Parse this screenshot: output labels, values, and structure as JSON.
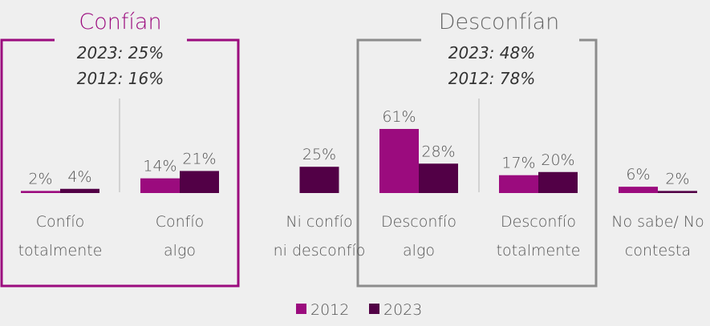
{
  "colors": {
    "background": "#efefef",
    "s2012": "#9b0b7e",
    "s2023": "#520046",
    "label_text": "#555555",
    "confian_accent": "#9b0b7e",
    "desconfian_frame": "#8c8c8c",
    "divider": "#c8c8c8"
  },
  "groups": {
    "confian": {
      "title": "Confían",
      "line2023": "2023: 25%",
      "line2012": "2012: 16%"
    },
    "desconfian": {
      "title": "Desconfían",
      "line2023": "2023: 48%",
      "line2012": "2012: 78%"
    }
  },
  "chart_data": {
    "type": "bar",
    "categories": [
      [
        "Confío",
        "totalmente"
      ],
      [
        "Confío",
        "algo"
      ],
      [
        "Ni confío",
        "ni desconfío"
      ],
      [
        "Desconfío",
        "algo"
      ],
      [
        "Desconfío",
        "totalmente"
      ],
      [
        "No sabe/ No",
        "contesta"
      ]
    ],
    "series": [
      {
        "name": "2012",
        "values": [
          2,
          14,
          null,
          61,
          17,
          6
        ],
        "labels": [
          "2%",
          "14%",
          "",
          "61%",
          "17%",
          "6%"
        ]
      },
      {
        "name": "2023",
        "values": [
          4,
          21,
          25,
          28,
          20,
          2
        ],
        "labels": [
          "4%",
          "21%",
          "25%",
          "28%",
          "20%",
          "2%"
        ]
      }
    ],
    "ylim": [
      0,
      61
    ],
    "grid": false,
    "legend": "bottom-center"
  }
}
